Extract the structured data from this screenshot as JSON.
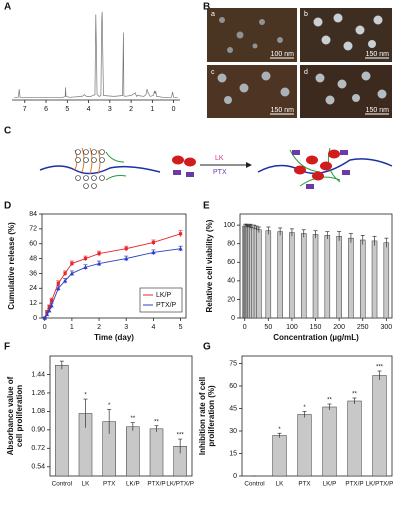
{
  "panel_labels": [
    "A",
    "B",
    "C",
    "D",
    "E",
    "F",
    "G"
  ],
  "micrographs": [
    {
      "label": "a",
      "scale": "100 nm"
    },
    {
      "label": "b",
      "scale": "150 nm"
    },
    {
      "label": "c",
      "scale": "150 nm"
    },
    {
      "label": "d",
      "scale": "150 nm"
    }
  ],
  "scheme": {
    "drug1": "LK",
    "drug2": "PTX"
  },
  "chart_data": [
    {
      "type": "line",
      "xlim": [
        7.6,
        -0.3
      ],
      "xticks": [
        7,
        6,
        5,
        4,
        3,
        2,
        1,
        0
      ],
      "ylim": [
        0,
        100
      ],
      "color": "#777777",
      "x": [
        7.5,
        7.3,
        7.26,
        7.22,
        7.0,
        6.0,
        5.2,
        5.1,
        5.08,
        5.06,
        4.9,
        4.3,
        4.2,
        4.1,
        3.9,
        3.7,
        3.66,
        3.64,
        3.6,
        3.5,
        3.42,
        3.38,
        3.36,
        3.3,
        2.8,
        2.4,
        2.36,
        2.34,
        2.3,
        2.0,
        1.8,
        1.75,
        1.7,
        1.4,
        1.3,
        1.25,
        1.2,
        1.1,
        0.95,
        0.9,
        0.87,
        0.84,
        0.8,
        0.5,
        0.1,
        0.05,
        0.0,
        -0.05,
        -0.2
      ],
      "values": [
        3,
        3,
        12,
        3,
        3,
        3,
        3,
        4,
        14,
        4,
        3,
        4,
        6,
        4,
        4,
        6,
        95,
        70,
        6,
        4,
        5,
        90,
        98,
        5,
        4,
        5,
        75,
        5,
        4,
        5,
        8,
        4,
        5,
        4,
        6,
        12,
        8,
        4,
        5,
        10,
        7,
        10,
        4,
        3,
        3,
        9,
        3,
        3,
        3
      ]
    },
    {
      "type": "line",
      "xlabel": "Time (day)",
      "ylabel": [
        "Cumulative release (%)"
      ],
      "frame": true,
      "legend": "lower right",
      "xlim": [
        -0.1,
        5.2
      ],
      "xticks": [
        0,
        1,
        2,
        3,
        4,
        5
      ],
      "ylim": [
        0,
        84
      ],
      "yticks": [
        0,
        12,
        24,
        36,
        48,
        60,
        72,
        84
      ],
      "x": [
        0,
        0.083,
        0.167,
        0.25,
        0.5,
        0.75,
        1,
        1.5,
        2,
        3,
        4,
        5
      ],
      "series": [
        {
          "name": "LK/P",
          "color": "#e8262b",
          "marker": "square",
          "values": [
            0,
            5,
            9,
            14,
            28,
            36,
            44,
            48,
            52,
            56,
            61,
            68
          ],
          "errors": [
            0.5,
            1,
            1.5,
            2,
            2,
            2,
            2,
            2,
            2,
            2,
            2,
            2.5
          ]
        },
        {
          "name": "PTX/P",
          "color": "#2f3fbf",
          "marker": "triangle",
          "values": [
            0,
            3,
            6,
            10,
            24,
            30,
            36,
            41,
            44,
            48,
            53,
            56
          ],
          "errors": [
            0.5,
            1,
            1.5,
            2,
            2,
            2,
            2,
            2,
            2,
            2,
            2,
            2
          ]
        }
      ]
    },
    {
      "type": "bar",
      "xlabel": "Concentration (µg/mL)",
      "ylabel": [
        "Relative cell viability (%)"
      ],
      "frame": true,
      "color": "#c8c8c8",
      "xlim": [
        -10,
        312
      ],
      "xticks": [
        0,
        50,
        100,
        150,
        200,
        250,
        300
      ],
      "ylim": [
        0,
        112
      ],
      "yticks": [
        0,
        20,
        40,
        60,
        80,
        100
      ],
      "x": [
        1,
        3,
        5,
        7,
        10,
        12,
        15,
        20,
        25,
        30,
        50,
        75,
        100,
        125,
        150,
        175,
        200,
        225,
        250,
        275,
        300
      ],
      "values": [
        99,
        99,
        99,
        98,
        98,
        98,
        97,
        97,
        96,
        95,
        94,
        93,
        92,
        91,
        90,
        89,
        88,
        86,
        84,
        83,
        81
      ],
      "errors": [
        2,
        2,
        2,
        2,
        2,
        3,
        3,
        3,
        3,
        3,
        4,
        4,
        4,
        4,
        4,
        4,
        5,
        5,
        5,
        5,
        5
      ]
    },
    {
      "type": "bar",
      "ylabel": [
        "Absorbance value of",
        "cell proliferation"
      ],
      "frame": true,
      "color": "#c8c8c8",
      "categories": [
        "Control",
        "LK",
        "PTX",
        "LK/P",
        "PTX/P",
        "LK/PTX/P"
      ],
      "ylim": [
        0.45,
        1.62
      ],
      "yticks": [
        0.54,
        0.72,
        {
          "value": 0.9,
          "label": "0.90"
        },
        1.08,
        1.26,
        1.44
      ],
      "values": [
        1.53,
        1.06,
        0.98,
        0.93,
        0.91,
        0.74
      ],
      "errors": [
        0.04,
        0.14,
        0.12,
        0.04,
        0.03,
        0.07
      ],
      "annotations": [
        null,
        "*",
        "*",
        "**",
        "**",
        "***"
      ]
    },
    {
      "type": "bar",
      "ylabel": [
        "Inhibition rate of cell",
        "proliferation (%)"
      ],
      "frame": true,
      "color": "#c8c8c8",
      "categories": [
        "Control",
        "LK",
        "PTX",
        "LK/P",
        "PTX/P",
        "LK/PTX/P"
      ],
      "ylim": [
        0,
        80
      ],
      "yticks": [
        0,
        15,
        30,
        45,
        60,
        75
      ],
      "values": [
        0,
        27,
        41,
        46,
        50,
        67
      ],
      "errors": [
        0,
        1.5,
        2,
        2,
        2,
        3
      ],
      "annotations": [
        null,
        "*",
        "*",
        "**",
        "**",
        "***"
      ]
    }
  ]
}
